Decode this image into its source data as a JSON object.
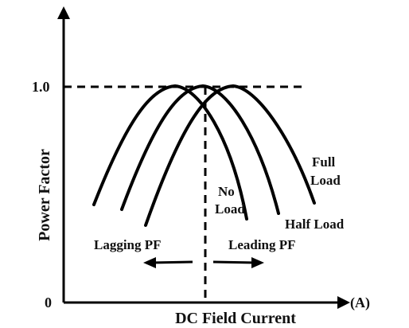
{
  "diagram": {
    "y_axis_label": "Power Factor",
    "x_axis_label": "DC Field Current",
    "x_axis_unit": "(A)",
    "y_tick_top": "1.0",
    "origin_label": "0",
    "curves": {
      "no_load": {
        "label_line1": "No",
        "label_line2": "Load"
      },
      "half_load": {
        "label": "Half Load"
      },
      "full_load": {
        "label_line1": "Full",
        "label_line2": "Load"
      }
    },
    "region_labels": {
      "lagging": "Lagging PF",
      "leading": "Leading PF"
    },
    "colors": {
      "ink": "#000000",
      "background": "#ffffff"
    }
  }
}
